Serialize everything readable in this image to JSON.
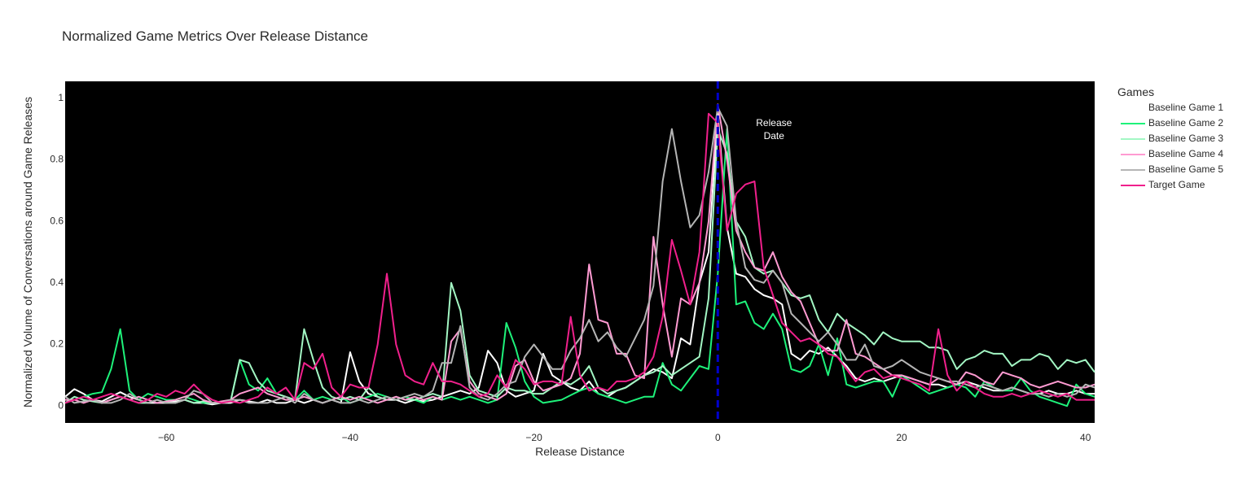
{
  "chart_data": {
    "type": "line",
    "title": "Normalized Game Metrics Over Release Distance",
    "xlabel": "Release Distance",
    "ylabel": "Normalized Volume of Conversations around Game Releases",
    "xlim": [
      -71,
      41
    ],
    "ylim": [
      -0.055,
      1.055
    ],
    "x_ticks": [
      -60,
      -40,
      -20,
      0,
      20,
      40
    ],
    "x_tick_labels": [
      "−60",
      "−40",
      "−20",
      "0",
      "20",
      "40"
    ],
    "y_ticks": [
      0,
      0.2,
      0.4,
      0.6,
      0.8,
      1
    ],
    "y_tick_labels": [
      "0",
      "0.2",
      "0.4",
      "0.6",
      "0.8",
      "1"
    ],
    "plot_background": "#000000",
    "grid": false,
    "legend": {
      "title": "Games",
      "position": "right"
    },
    "release_marker": {
      "x": 0,
      "color": "#0000cc",
      "dash": true,
      "label_lines": [
        "Release",
        "Date"
      ]
    },
    "x": [
      -71,
      -70,
      -69,
      -68,
      -67,
      -66,
      -65,
      -64,
      -63,
      -62,
      -61,
      -60,
      -59,
      -58,
      -57,
      -56,
      -55,
      -54,
      -53,
      -52,
      -51,
      -50,
      -49,
      -48,
      -47,
      -46,
      -45,
      -44,
      -43,
      -42,
      -41,
      -40,
      -39,
      -38,
      -37,
      -36,
      -35,
      -34,
      -33,
      -32,
      -31,
      -30,
      -29,
      -28,
      -27,
      -26,
      -25,
      -24,
      -23,
      -22,
      -21,
      -20,
      -19,
      -18,
      -17,
      -16,
      -15,
      -14,
      -13,
      -12,
      -11,
      -10,
      -9,
      -8,
      -7,
      -6,
      -5,
      -4,
      -3,
      -2,
      -1,
      0,
      1,
      2,
      3,
      4,
      5,
      6,
      7,
      8,
      9,
      10,
      11,
      12,
      13,
      14,
      15,
      16,
      17,
      18,
      19,
      20,
      21,
      22,
      23,
      24,
      25,
      26,
      27,
      28,
      29,
      30,
      31,
      32,
      33,
      34,
      35,
      36,
      37,
      38,
      39,
      40,
      41
    ],
    "series": [
      {
        "name": "Baseline Game 1",
        "color": "#ffffff",
        "values": [
          0.03,
          0.055,
          0.04,
          0.02,
          0.015,
          0.03,
          0.045,
          0.03,
          0.02,
          0.01,
          0.01,
          0.01,
          0.015,
          0.02,
          0.01,
          0.01,
          0.005,
          0.01,
          0.01,
          0.02,
          0.015,
          0.01,
          0.02,
          0.01,
          0.01,
          0.02,
          0.01,
          0.02,
          0.01,
          0.02,
          0.01,
          0.175,
          0.08,
          0.04,
          0.03,
          0.02,
          0.02,
          0.01,
          0.02,
          0.015,
          0.02,
          0.03,
          0.04,
          0.05,
          0.04,
          0.06,
          0.18,
          0.14,
          0.05,
          0.03,
          0.04,
          0.05,
          0.17,
          0.1,
          0.08,
          0.06,
          0.05,
          0.08,
          0.04,
          0.03,
          0.05,
          0.06,
          0.08,
          0.1,
          0.12,
          0.11,
          0.09,
          0.22,
          0.2,
          0.4,
          0.5,
          0.95,
          0.58,
          0.43,
          0.42,
          0.38,
          0.36,
          0.35,
          0.33,
          0.17,
          0.15,
          0.18,
          0.17,
          0.19,
          0.16,
          0.13,
          0.09,
          0.08,
          0.09,
          0.08,
          0.09,
          0.1,
          0.09,
          0.08,
          0.07,
          0.07,
          0.06,
          0.07,
          0.08,
          0.07,
          0.06,
          0.05,
          0.05,
          0.06,
          0.05,
          0.04,
          0.04,
          0.05,
          0.04,
          0.04,
          0.05,
          0.04,
          0.04
        ]
      },
      {
        "name": "Baseline Game 2",
        "color": "#1ef27a",
        "values": [
          0.01,
          0.02,
          0.03,
          0.04,
          0.045,
          0.12,
          0.25,
          0.05,
          0.02,
          0.04,
          0.03,
          0.02,
          0.02,
          0.03,
          0.02,
          0.01,
          0.01,
          0.01,
          0.015,
          0.15,
          0.07,
          0.05,
          0.09,
          0.04,
          0.03,
          0.02,
          0.05,
          0.02,
          0.03,
          0.02,
          0.03,
          0.01,
          0.02,
          0.03,
          0.04,
          0.03,
          0.02,
          0.03,
          0.02,
          0.01,
          0.03,
          0.02,
          0.03,
          0.02,
          0.03,
          0.02,
          0.01,
          0.02,
          0.27,
          0.19,
          0.08,
          0.03,
          0.01,
          0.015,
          0.02,
          0.035,
          0.05,
          0.06,
          0.04,
          0.03,
          0.02,
          0.01,
          0.02,
          0.03,
          0.03,
          0.14,
          0.07,
          0.05,
          0.09,
          0.13,
          0.12,
          0.43,
          0.9,
          0.33,
          0.34,
          0.27,
          0.25,
          0.3,
          0.25,
          0.12,
          0.11,
          0.13,
          0.2,
          0.1,
          0.22,
          0.07,
          0.06,
          0.07,
          0.08,
          0.08,
          0.03,
          0.1,
          0.08,
          0.06,
          0.04,
          0.05,
          0.06,
          0.07,
          0.06,
          0.03,
          0.08,
          0.06,
          0.05,
          0.05,
          0.09,
          0.05,
          0.03,
          0.02,
          0.01,
          0,
          0.07,
          0.04,
          0.03
        ]
      },
      {
        "name": "Baseline Game 3",
        "color": "#a3f7c4",
        "values": [
          0.01,
          0.03,
          0.02,
          0.015,
          0.01,
          0.02,
          0.03,
          0.02,
          0.01,
          0.01,
          0.02,
          0.01,
          0.01,
          0.02,
          0.01,
          0.015,
          0.01,
          0.01,
          0.015,
          0.15,
          0.14,
          0.08,
          0.05,
          0.04,
          0.03,
          0.02,
          0.25,
          0.15,
          0.06,
          0.03,
          0.02,
          0.03,
          0.02,
          0.06,
          0.03,
          0.02,
          0.03,
          0.02,
          0.02,
          0.03,
          0.04,
          0.03,
          0.4,
          0.31,
          0.1,
          0.05,
          0.04,
          0.03,
          0.06,
          0.05,
          0.05,
          0.04,
          0.04,
          0.06,
          0.08,
          0.07,
          0.09,
          0.13,
          0.06,
          0.04,
          0.05,
          0.06,
          0.08,
          0.1,
          0.11,
          0.13,
          0.1,
          0.12,
          0.14,
          0.16,
          0.35,
          0.9,
          0.82,
          0.6,
          0.55,
          0.45,
          0.43,
          0.44,
          0.4,
          0.36,
          0.35,
          0.36,
          0.28,
          0.24,
          0.3,
          0.27,
          0.25,
          0.23,
          0.2,
          0.24,
          0.22,
          0.21,
          0.21,
          0.21,
          0.19,
          0.19,
          0.18,
          0.12,
          0.15,
          0.16,
          0.18,
          0.17,
          0.17,
          0.13,
          0.15,
          0.15,
          0.17,
          0.16,
          0.12,
          0.15,
          0.14,
          0.15,
          0.11
        ]
      },
      {
        "name": "Baseline Game 4",
        "color": "#ff9bd2",
        "values": [
          0.02,
          0.02,
          0.01,
          0.02,
          0.01,
          0.02,
          0.03,
          0.02,
          0.03,
          0.02,
          0.01,
          0.015,
          0.02,
          0.03,
          0.04,
          0.02,
          0.01,
          0.015,
          0.02,
          0.04,
          0.05,
          0.06,
          0.04,
          0.03,
          0.02,
          0.02,
          0.03,
          0.02,
          0.01,
          0.02,
          0.03,
          0.02,
          0.03,
          0.02,
          0.01,
          0.02,
          0.03,
          0.02,
          0.03,
          0.02,
          0.03,
          0.02,
          0.21,
          0.25,
          0.08,
          0.04,
          0.03,
          0.02,
          0.04,
          0.13,
          0.15,
          0.08,
          0.05,
          0.06,
          0.07,
          0.09,
          0.17,
          0.46,
          0.28,
          0.27,
          0.17,
          0.17,
          0.1,
          0.09,
          0.55,
          0.33,
          0.16,
          0.35,
          0.33,
          0.4,
          0.6,
          0.98,
          0.8,
          0.57,
          0.5,
          0.45,
          0.44,
          0.5,
          0.42,
          0.37,
          0.34,
          0.27,
          0.2,
          0.18,
          0.18,
          0.28,
          0.17,
          0.16,
          0.14,
          0.12,
          0.1,
          0.1,
          0.09,
          0.08,
          0.07,
          0.09,
          0.08,
          0.07,
          0.11,
          0.1,
          0.08,
          0.07,
          0.11,
          0.1,
          0.09,
          0.07,
          0.06,
          0.07,
          0.08,
          0.07,
          0.06,
          0.06,
          0.07
        ]
      },
      {
        "name": "Baseline Game 5",
        "color": "#b5b5b5",
        "values": [
          0.03,
          0.01,
          0.015,
          0.02,
          0.01,
          0.01,
          0.02,
          0.04,
          0.02,
          0.01,
          0.02,
          0.01,
          0.01,
          0.02,
          0.05,
          0.04,
          0.01,
          0.01,
          0.02,
          0.02,
          0.01,
          0.01,
          0.01,
          0.02,
          0.03,
          0.01,
          0.04,
          0.02,
          0.01,
          0.02,
          0.01,
          0.01,
          0.02,
          0.01,
          0.02,
          0.03,
          0.02,
          0.03,
          0.04,
          0.03,
          0.05,
          0.14,
          0.14,
          0.26,
          0.06,
          0.03,
          0.02,
          0.04,
          0.07,
          0.08,
          0.16,
          0.2,
          0.16,
          0.12,
          0.12,
          0.18,
          0.22,
          0.28,
          0.21,
          0.24,
          0.19,
          0.16,
          0.22,
          0.28,
          0.39,
          0.73,
          0.9,
          0.73,
          0.58,
          0.62,
          0.76,
          0.97,
          0.91,
          0.6,
          0.45,
          0.41,
          0.4,
          0.44,
          0.4,
          0.3,
          0.27,
          0.24,
          0.21,
          0.24,
          0.2,
          0.15,
          0.15,
          0.2,
          0.13,
          0.12,
          0.13,
          0.15,
          0.13,
          0.11,
          0.1,
          0.09,
          0.08,
          0.08,
          0.07,
          0.06,
          0.07,
          0.06,
          0.05,
          0.06,
          0.05,
          0.04,
          0.04,
          0.03,
          0.04,
          0.03,
          0.04,
          0.07,
          0.06
        ]
      },
      {
        "name": "Target Game",
        "color": "#f0208c",
        "values": [
          0.01,
          0.02,
          0.03,
          0.02,
          0.03,
          0.04,
          0.03,
          0.02,
          0.01,
          0.02,
          0.04,
          0.03,
          0.05,
          0.04,
          0.07,
          0.04,
          0.02,
          0.01,
          0.015,
          0.01,
          0.02,
          0.03,
          0.06,
          0.04,
          0.06,
          0.02,
          0.14,
          0.12,
          0.17,
          0.06,
          0.03,
          0.07,
          0.06,
          0.06,
          0.2,
          0.43,
          0.2,
          0.1,
          0.08,
          0.07,
          0.14,
          0.08,
          0.08,
          0.07,
          0.05,
          0.03,
          0.04,
          0.1,
          0.06,
          0.15,
          0.12,
          0.07,
          0.08,
          0.08,
          0.07,
          0.29,
          0.1,
          0.05,
          0.06,
          0.05,
          0.08,
          0.08,
          0.09,
          0.11,
          0.16,
          0.29,
          0.54,
          0.44,
          0.33,
          0.5,
          0.95,
          0.92,
          0.57,
          0.69,
          0.72,
          0.73,
          0.45,
          0.36,
          0.27,
          0.24,
          0.21,
          0.22,
          0.2,
          0.17,
          0.16,
          0.12,
          0.08,
          0.11,
          0.12,
          0.09,
          0.1,
          0.09,
          0.08,
          0.07,
          0.05,
          0.25,
          0.1,
          0.05,
          0.08,
          0.06,
          0.04,
          0.03,
          0.03,
          0.04,
          0.03,
          0.04,
          0.05,
          0.04,
          0.03,
          0.04,
          0.02,
          0.02,
          0.02
        ]
      }
    ]
  }
}
